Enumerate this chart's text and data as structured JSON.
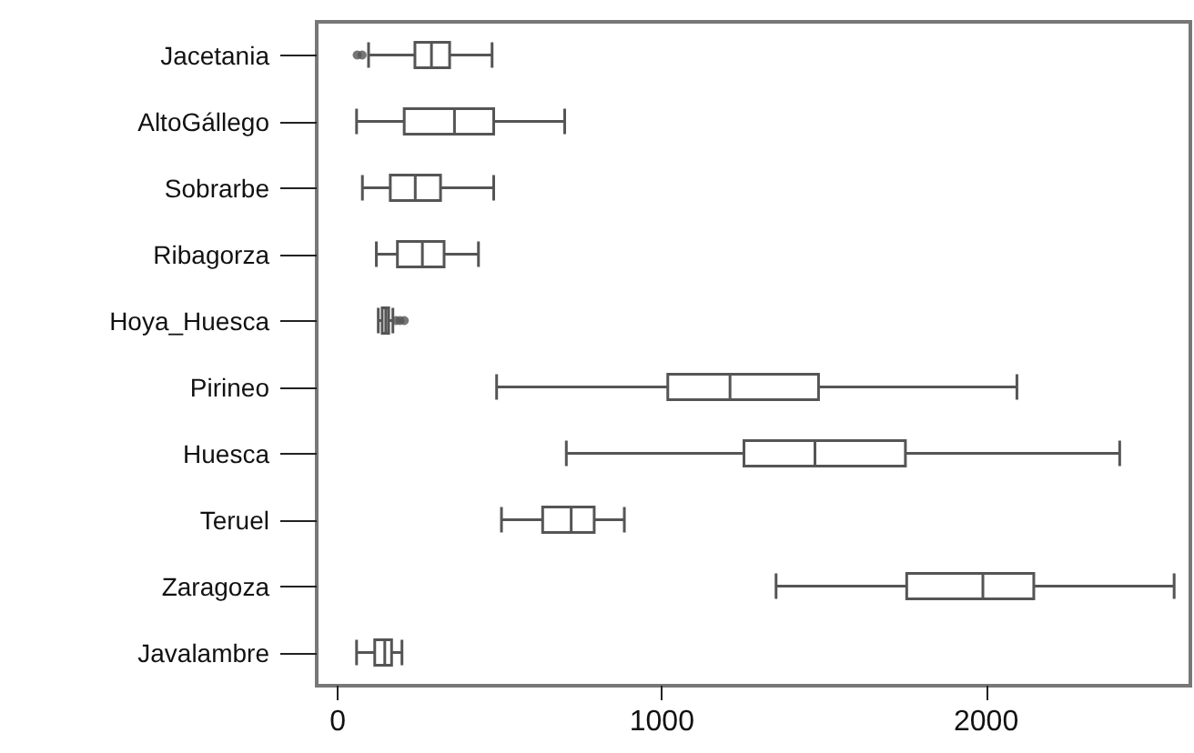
{
  "chart_data": {
    "type": "box",
    "orientation": "horizontal",
    "categories": [
      "Jacetania",
      "AltoGállego",
      "Sobrarbe",
      "Ribagorza",
      "Hoya_Huesca",
      "Pirineo",
      "Huesca",
      "Teruel",
      "Zaragoza",
      "Javalambre"
    ],
    "boxes": [
      {
        "low": 95,
        "q1": 238,
        "median": 289,
        "q3": 345,
        "high": 476,
        "outliers": [
          60,
          75
        ]
      },
      {
        "low": 58,
        "q1": 205,
        "median": 360,
        "q3": 481,
        "high": 700
      },
      {
        "low": 76,
        "q1": 162,
        "median": 239,
        "q3": 317,
        "high": 481
      },
      {
        "low": 119,
        "q1": 184,
        "median": 261,
        "q3": 328,
        "high": 434
      },
      {
        "low": 125,
        "q1": 137,
        "median": 148,
        "q3": 157,
        "high": 170,
        "outliers": [
          180,
          192,
          205
        ]
      },
      {
        "low": 490,
        "q1": 1018,
        "median": 1210,
        "q3": 1483,
        "high": 2095
      },
      {
        "low": 705,
        "q1": 1253,
        "median": 1472,
        "q3": 1751,
        "high": 2412
      },
      {
        "low": 505,
        "q1": 632,
        "median": 720,
        "q3": 791,
        "high": 884
      },
      {
        "low": 1352,
        "q1": 1755,
        "median": 1990,
        "q3": 2147,
        "high": 2580
      },
      {
        "low": 58,
        "q1": 114,
        "median": 145,
        "q3": 166,
        "high": 198
      }
    ],
    "color": "#555555",
    "marker": "circle",
    "xlim": [
      -65,
      2630
    ],
    "xticks": [
      0,
      1000,
      2000
    ],
    "grid": false
  }
}
